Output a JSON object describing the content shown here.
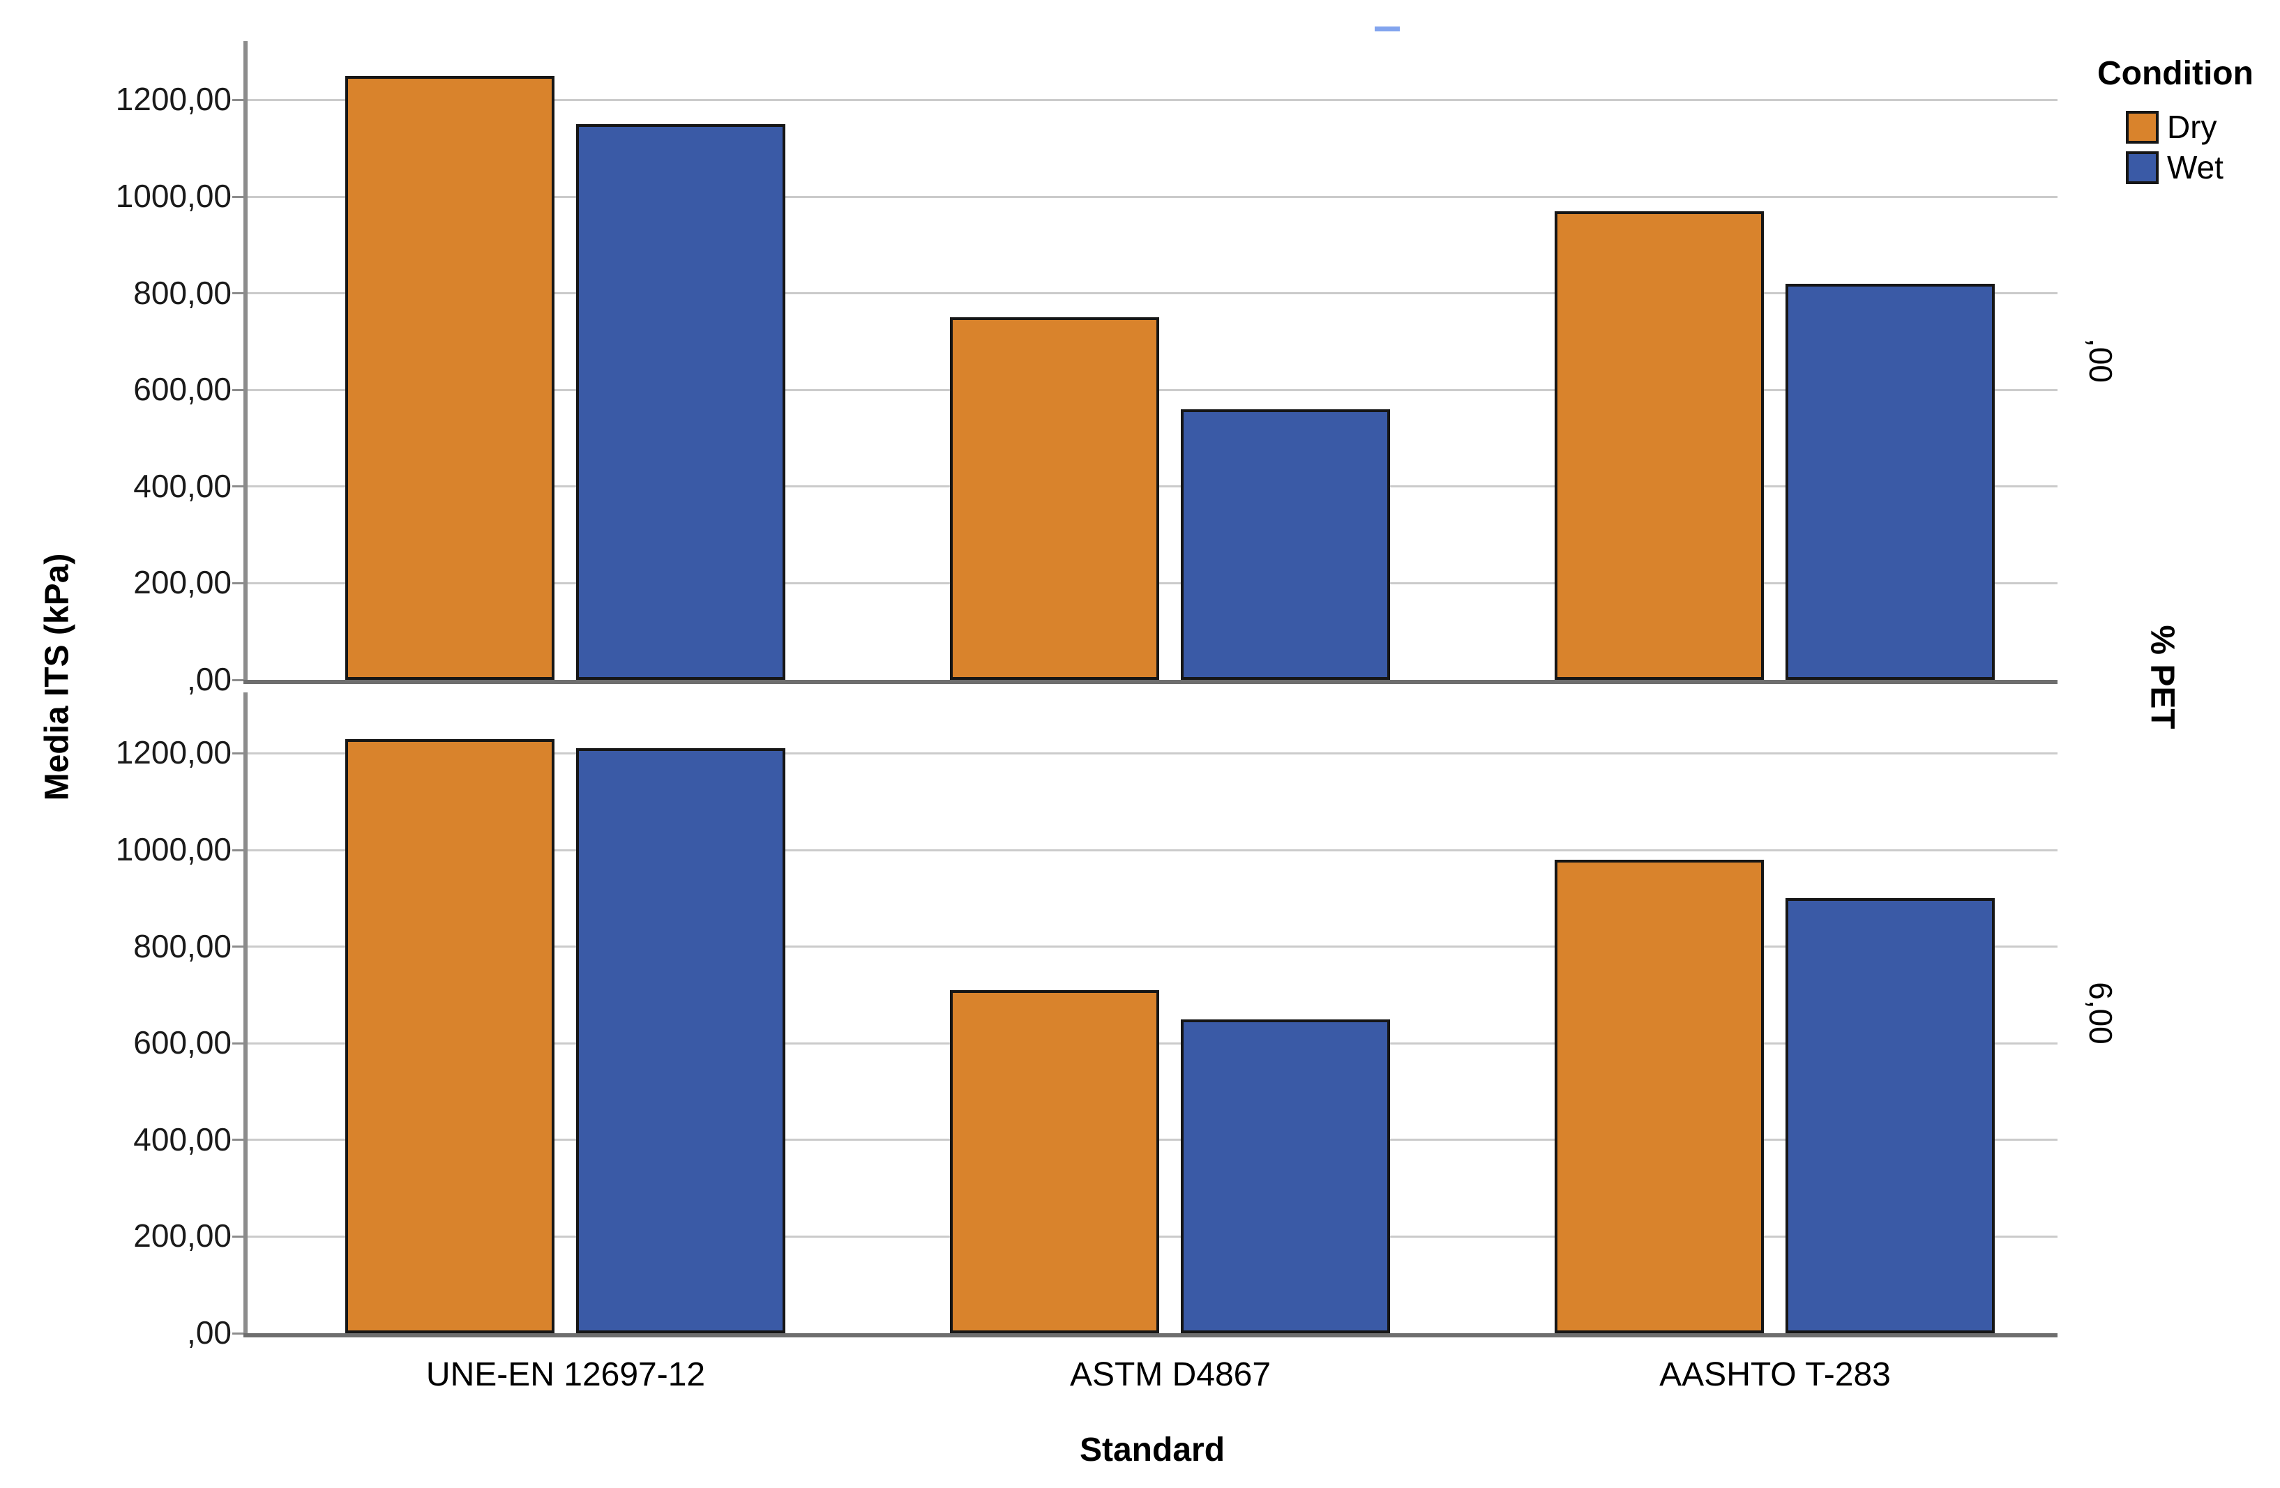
{
  "chart_data": {
    "type": "bar",
    "title": "",
    "xlabel": "Standard",
    "ylabel": "Media ITS (kPa)",
    "facet_axis_label": "% PET",
    "categories": [
      "UNE-EN 12697-12",
      "ASTM D4867",
      "AASHTO T-283"
    ],
    "panels": [
      {
        "facet_label": ",00",
        "series": [
          {
            "name": "Dry",
            "values": [
              1250,
              750,
              970
            ]
          },
          {
            "name": "Wet",
            "values": [
              1150,
              560,
              820
            ]
          }
        ]
      },
      {
        "facet_label": "6,00",
        "series": [
          {
            "name": "Dry",
            "values": [
              1230,
              710,
              980
            ]
          },
          {
            "name": "Wet",
            "values": [
              1210,
              650,
              900
            ]
          }
        ]
      }
    ],
    "ylim": [
      0,
      1300
    ],
    "ytick_values": [
      1200,
      1000,
      800,
      600,
      400,
      200,
      0
    ],
    "ytick_labels": [
      "1200,00",
      "1000,00",
      "800,00",
      "600,00",
      "400,00",
      "200,00",
      ",00"
    ],
    "grid": true,
    "legend_position": "top-right",
    "legend": {
      "title": "Condition",
      "entries": [
        {
          "label": "Dry",
          "color": "#D9832C"
        },
        {
          "label": "Wet",
          "color": "#3A5AA6"
        }
      ]
    },
    "colors": {
      "bar_border": "#161616",
      "gridline": "#CBCBCB",
      "axis_line": "#8C8C8C",
      "baseline": "#6E6E6E",
      "text": "#000000",
      "top_dash_artifact": "#82A4EE"
    }
  }
}
